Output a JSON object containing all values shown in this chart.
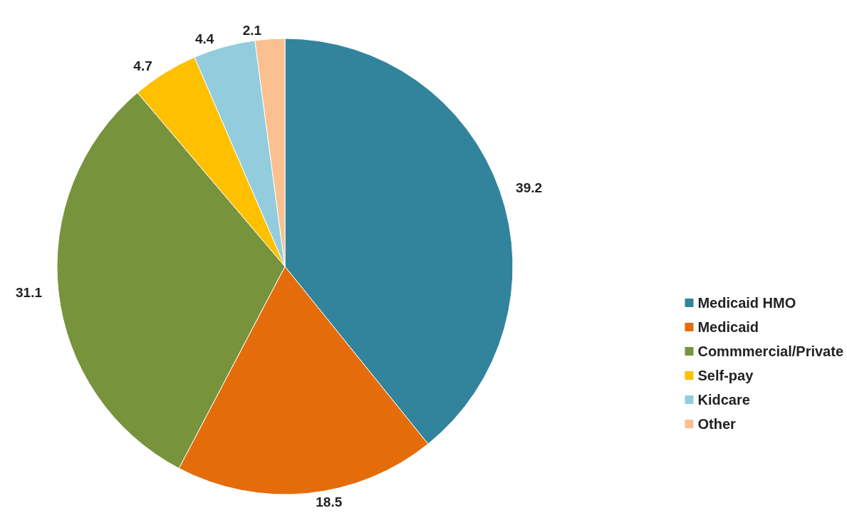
{
  "chart_data": {
    "type": "pie",
    "categories": [
      "Medicaid HMO",
      "Medicaid",
      "Commmercial/Private",
      "Self-pay",
      "Kidcare",
      "Other"
    ],
    "values": [
      39.2,
      18.5,
      31.1,
      4.7,
      4.4,
      2.1
    ],
    "colors": [
      "#31849b",
      "#e46c0a",
      "#77933c",
      "#ffc000",
      "#93cddd",
      "#fac090"
    ],
    "data_labels": true,
    "legend": "right"
  }
}
